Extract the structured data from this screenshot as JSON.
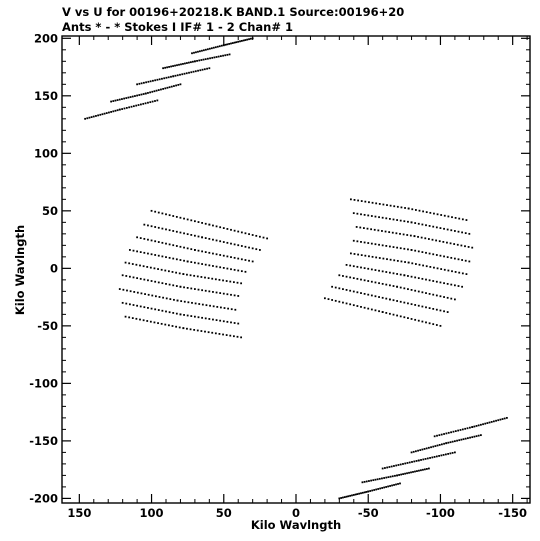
{
  "header": {
    "line1": "V vs U for 00196+20218.K BAND.1   Source:00196+20",
    "line2": "Ants * - *     Stokes I   IF# 1 - 2   Chan# 1"
  },
  "chart_data": {
    "type": "scatter",
    "xlabel": "Kilo Wavlngth",
    "ylabel": "Kilo Wavlngth",
    "xlim": [
      162,
      -162
    ],
    "ylim": [
      -204,
      202
    ],
    "x_ticks": [
      150,
      100,
      50,
      0,
      -50,
      -100,
      -150
    ],
    "x_tick_labels": [
      "150",
      "100",
      "50",
      "0",
      "-50",
      "-100",
      "-150"
    ],
    "y_ticks": [
      200,
      150,
      100,
      50,
      0,
      -50,
      -100,
      -150,
      -200
    ],
    "y_tick_labels": [
      "200",
      "150",
      "100",
      "50",
      "0",
      "-50",
      "-100",
      "-150",
      "-200"
    ],
    "marker_color": "#000000",
    "uv_tracks_fan_a": [
      [
        [
          72,
          187
        ],
        [
          50,
          194
        ],
        [
          30,
          200
        ]
      ],
      [
        [
          92,
          174
        ],
        [
          70,
          180
        ],
        [
          46,
          186
        ]
      ],
      [
        [
          110,
          160
        ],
        [
          85,
          167
        ],
        [
          60,
          174
        ]
      ],
      [
        [
          128,
          145
        ],
        [
          104,
          152
        ],
        [
          80,
          160
        ]
      ],
      [
        [
          146,
          130
        ],
        [
          122,
          138
        ],
        [
          96,
          146
        ]
      ],
      [
        [
          100,
          50
        ],
        [
          60,
          38
        ],
        [
          20,
          26
        ]
      ],
      [
        [
          105,
          38
        ],
        [
          65,
          27
        ],
        [
          25,
          16
        ]
      ],
      [
        [
          110,
          27
        ],
        [
          70,
          16
        ],
        [
          30,
          6
        ]
      ],
      [
        [
          115,
          16
        ],
        [
          75,
          6
        ],
        [
          35,
          -3
        ]
      ],
      [
        [
          118,
          5
        ],
        [
          78,
          -5
        ],
        [
          38,
          -13
        ]
      ],
      [
        [
          120,
          -6
        ],
        [
          80,
          -16
        ],
        [
          40,
          -24
        ]
      ],
      [
        [
          122,
          -18
        ],
        [
          82,
          -28
        ],
        [
          42,
          -36
        ]
      ],
      [
        [
          120,
          -30
        ],
        [
          80,
          -40
        ],
        [
          40,
          -48
        ]
      ],
      [
        [
          118,
          -42
        ],
        [
          78,
          -52
        ],
        [
          38,
          -60
        ]
      ]
    ],
    "uv_tracks_fan_b": [
      [
        [
          -72,
          -187
        ],
        [
          -50,
          -194
        ],
        [
          -30,
          -200
        ]
      ],
      [
        [
          -92,
          -174
        ],
        [
          -70,
          -180
        ],
        [
          -46,
          -186
        ]
      ],
      [
        [
          -110,
          -160
        ],
        [
          -85,
          -167
        ],
        [
          -60,
          -174
        ]
      ],
      [
        [
          -128,
          -145
        ],
        [
          -104,
          -152
        ],
        [
          -80,
          -160
        ]
      ],
      [
        [
          -146,
          -130
        ],
        [
          -122,
          -138
        ],
        [
          -96,
          -146
        ]
      ],
      [
        [
          -100,
          -50
        ],
        [
          -60,
          -38
        ],
        [
          -20,
          -26
        ]
      ],
      [
        [
          -105,
          -38
        ],
        [
          -65,
          -27
        ],
        [
          -25,
          -16
        ]
      ],
      [
        [
          -110,
          -27
        ],
        [
          -70,
          -16
        ],
        [
          -30,
          -6
        ]
      ],
      [
        [
          -115,
          -16
        ],
        [
          -75,
          -6
        ],
        [
          -35,
          3
        ]
      ],
      [
        [
          -118,
          -5
        ],
        [
          -78,
          5
        ],
        [
          -38,
          13
        ]
      ],
      [
        [
          -120,
          6
        ],
        [
          -80,
          16
        ],
        [
          -40,
          24
        ]
      ],
      [
        [
          -122,
          18
        ],
        [
          -82,
          28
        ],
        [
          -42,
          36
        ]
      ],
      [
        [
          -120,
          30
        ],
        [
          -80,
          40
        ],
        [
          -40,
          48
        ]
      ],
      [
        [
          -118,
          42
        ],
        [
          -78,
          52
        ],
        [
          -38,
          60
        ]
      ]
    ]
  }
}
